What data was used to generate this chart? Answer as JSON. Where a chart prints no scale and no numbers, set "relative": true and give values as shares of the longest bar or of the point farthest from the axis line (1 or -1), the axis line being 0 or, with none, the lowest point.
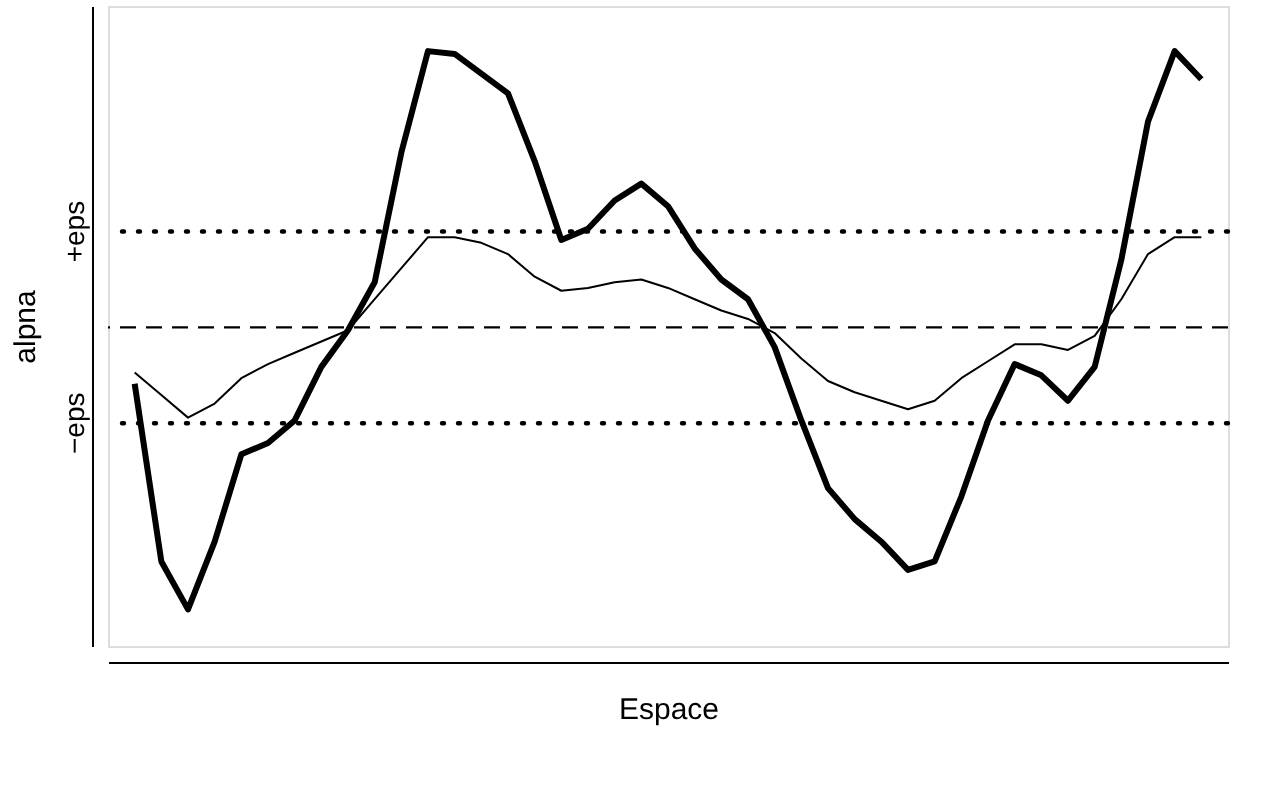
{
  "chart_data": {
    "type": "line",
    "xlabel": "Espace",
    "ylabel": "alpna",
    "relative": true,
    "categories": [
      null,
      null,
      null,
      null,
      null,
      null,
      null,
      null,
      null,
      null,
      null,
      null,
      null,
      null,
      null,
      null,
      null,
      null,
      null,
      null,
      null,
      null,
      null,
      null,
      null,
      null,
      null,
      null,
      null,
      null,
      null,
      null,
      null,
      null,
      null,
      null,
      null,
      null,
      null,
      null,
      null
    ],
    "marker": "none",
    "line_style": "solid",
    "ref_lines": [
      {
        "axis": "y",
        "value": 0.34,
        "label": "+eps",
        "color": "#000000",
        "line_style": "dotted"
      },
      {
        "axis": "y",
        "value": 0,
        "color": "#000000",
        "line_style": "dashed"
      },
      {
        "axis": "y",
        "value": -0.34,
        "label": "−eps",
        "color": "#000000",
        "line_style": "dotted"
      }
    ],
    "series": [
      {
        "color": "#000000",
        "values": [
          -0.2,
          -0.83,
          -1,
          -0.76,
          -0.45,
          -0.41,
          -0.33,
          -0.14,
          -0.01,
          0.16,
          0.62,
          0.98,
          0.97,
          0.9,
          0.83,
          0.59,
          0.31,
          0.35,
          0.45,
          0.51,
          0.43,
          0.28,
          0.17,
          0.1,
          -0.07,
          -0.33,
          -0.57,
          -0.68,
          -0.76,
          -0.86,
          -0.83,
          -0.6,
          -0.33,
          -0.13,
          -0.17,
          -0.26,
          -0.14,
          0.24,
          0.73,
          0.98,
          0.88
        ]
      },
      {
        "color": "#000000",
        "values": [
          -0.16,
          -0.24,
          -0.32,
          -0.27,
          -0.18,
          -0.13,
          -0.09,
          -0.05,
          -0.01,
          0.1,
          0.21,
          0.32,
          0.32,
          0.3,
          0.26,
          0.18,
          0.13,
          0.14,
          0.16,
          0.17,
          0.14,
          0.1,
          0.06,
          0.03,
          -0.02,
          -0.11,
          -0.19,
          -0.23,
          -0.26,
          -0.29,
          -0.26,
          -0.18,
          -0.12,
          -0.06,
          -0.06,
          -0.08,
          -0.03,
          0.1,
          0.26,
          0.32,
          0.32
        ]
      }
    ]
  }
}
